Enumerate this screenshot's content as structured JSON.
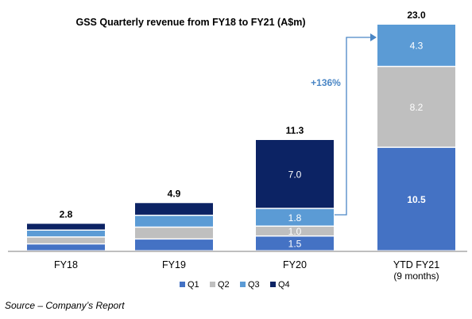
{
  "chart_data": {
    "type": "bar",
    "stacked": true,
    "title": "GSS Quarterly revenue from FY18 to FY21 (A$m)",
    "categories": [
      "FY18",
      "FY19",
      "FY20",
      "YTD FY21"
    ],
    "category_sublabels": [
      "",
      "",
      "",
      "(9 months)"
    ],
    "totals": [
      "2.8",
      "4.9",
      "11.3",
      "23.0"
    ],
    "series": [
      {
        "name": "Q1",
        "color": "#4472C4",
        "values": [
          0.7,
          1.2,
          1.5,
          10.5
        ],
        "labels": [
          "",
          "",
          "1.5",
          "10.5"
        ]
      },
      {
        "name": "Q2",
        "color": "#BFBFBF",
        "values": [
          0.7,
          1.2,
          1.0,
          8.2
        ],
        "labels": [
          "",
          "",
          "1.0",
          "8.2"
        ]
      },
      {
        "name": "Q3",
        "color": "#5B9BD5",
        "values": [
          0.7,
          1.2,
          1.8,
          4.3
        ],
        "labels": [
          "",
          "",
          "1.8",
          "4.3"
        ]
      },
      {
        "name": "Q4",
        "color": "#0C2364",
        "values": [
          0.7,
          1.3,
          7.0,
          0
        ],
        "labels": [
          "",
          "",
          "7.0",
          ""
        ]
      }
    ],
    "annotation": {
      "text": "+136%",
      "color": "#4A86C5"
    },
    "legend_position": "bottom",
    "grid": false
  },
  "source": "Source – Company’s Report"
}
